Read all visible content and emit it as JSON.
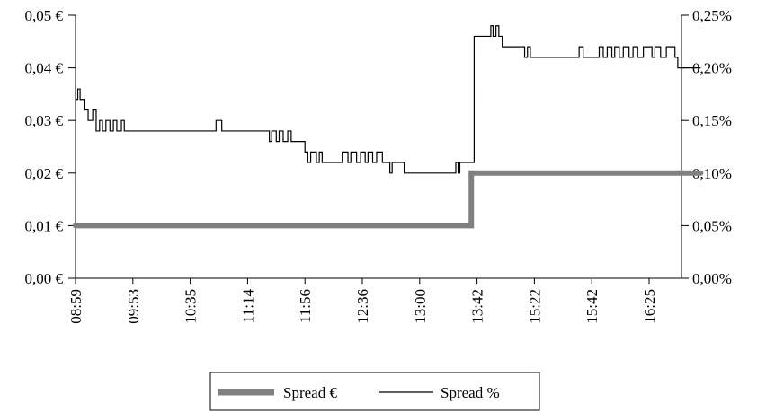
{
  "chart_data": {
    "type": "line",
    "title": "",
    "x_ticks": [
      "08:59",
      "09:53",
      "10:35",
      "11:14",
      "11:56",
      "12:36",
      "13:00",
      "13:42",
      "15:22",
      "15:42",
      "16:25"
    ],
    "y_left": {
      "ticks": [
        "0,00 €",
        "0,01 €",
        "0,02 €",
        "0,03 €",
        "0,04 €",
        "0,05 €"
      ],
      "ylim": [
        0,
        0.05
      ]
    },
    "y_right": {
      "ticks": [
        "0,00%",
        "0,05%",
        "0,10%",
        "0,15%",
        "0,20%",
        "0,25%"
      ],
      "ylim": [
        0,
        0.25
      ]
    },
    "grid": false,
    "legend_position": "bottom",
    "series": [
      {
        "name": "Spread €",
        "axis": "left",
        "color": "#808080",
        "step": true,
        "points": [
          [
            0,
            0.01
          ],
          [
            6.9,
            0.01
          ],
          [
            6.9,
            0.02
          ],
          [
            10.9,
            0.02
          ]
        ]
      },
      {
        "name": "Spread %",
        "axis": "right",
        "color": "#000000",
        "step": true,
        "points": [
          [
            0,
            0.17
          ],
          [
            0.04,
            0.18
          ],
          [
            0.08,
            0.17
          ],
          [
            0.15,
            0.16
          ],
          [
            0.22,
            0.15
          ],
          [
            0.3,
            0.16
          ],
          [
            0.36,
            0.14
          ],
          [
            0.42,
            0.15
          ],
          [
            0.47,
            0.14
          ],
          [
            0.53,
            0.15
          ],
          [
            0.6,
            0.14
          ],
          [
            0.66,
            0.15
          ],
          [
            0.72,
            0.14
          ],
          [
            0.8,
            0.15
          ],
          [
            0.85,
            0.14
          ],
          [
            2.4,
            0.14
          ],
          [
            2.45,
            0.15
          ],
          [
            2.55,
            0.14
          ],
          [
            3.35,
            0.14
          ],
          [
            3.38,
            0.13
          ],
          [
            3.42,
            0.14
          ],
          [
            3.5,
            0.13
          ],
          [
            3.55,
            0.14
          ],
          [
            3.62,
            0.13
          ],
          [
            3.7,
            0.14
          ],
          [
            3.76,
            0.13
          ],
          [
            3.98,
            0.13
          ],
          [
            4.0,
            0.12
          ],
          [
            4.05,
            0.11
          ],
          [
            4.1,
            0.12
          ],
          [
            4.2,
            0.11
          ],
          [
            4.25,
            0.12
          ],
          [
            4.3,
            0.11
          ],
          [
            4.6,
            0.11
          ],
          [
            4.65,
            0.12
          ],
          [
            4.75,
            0.11
          ],
          [
            4.8,
            0.12
          ],
          [
            4.9,
            0.11
          ],
          [
            4.97,
            0.12
          ],
          [
            5.05,
            0.11
          ],
          [
            5.1,
            0.12
          ],
          [
            5.18,
            0.11
          ],
          [
            5.25,
            0.12
          ],
          [
            5.35,
            0.11
          ],
          [
            5.45,
            0.11
          ],
          [
            5.48,
            0.1
          ],
          [
            5.52,
            0.11
          ],
          [
            5.7,
            0.11
          ],
          [
            5.73,
            0.1
          ],
          [
            6.6,
            0.1
          ],
          [
            6.63,
            0.11
          ],
          [
            6.67,
            0.1
          ],
          [
            6.7,
            0.11
          ],
          [
            6.9,
            0.11
          ],
          [
            6.95,
            0.23
          ],
          [
            7.2,
            0.23
          ],
          [
            7.24,
            0.24
          ],
          [
            7.28,
            0.23
          ],
          [
            7.33,
            0.24
          ],
          [
            7.38,
            0.23
          ],
          [
            7.44,
            0.22
          ],
          [
            7.8,
            0.22
          ],
          [
            7.83,
            0.21
          ],
          [
            7.88,
            0.22
          ],
          [
            7.93,
            0.21
          ],
          [
            8.75,
            0.21
          ],
          [
            8.78,
            0.22
          ],
          [
            8.85,
            0.21
          ],
          [
            9.1,
            0.21
          ],
          [
            9.13,
            0.22
          ],
          [
            9.2,
            0.21
          ],
          [
            9.27,
            0.22
          ],
          [
            9.35,
            0.21
          ],
          [
            9.4,
            0.22
          ],
          [
            9.48,
            0.21
          ],
          [
            9.55,
            0.22
          ],
          [
            9.65,
            0.21
          ],
          [
            9.72,
            0.22
          ],
          [
            9.8,
            0.21
          ],
          [
            9.9,
            0.22
          ],
          [
            10.05,
            0.21
          ],
          [
            10.1,
            0.22
          ],
          [
            10.2,
            0.21
          ],
          [
            10.3,
            0.22
          ],
          [
            10.45,
            0.21
          ],
          [
            10.5,
            0.2
          ],
          [
            10.9,
            0.2
          ]
        ]
      }
    ]
  },
  "legend": {
    "items": [
      {
        "label": "Spread €",
        "color": "#808080",
        "style": "thick"
      },
      {
        "label": "Spread %",
        "color": "#000000",
        "style": "thin"
      }
    ]
  }
}
